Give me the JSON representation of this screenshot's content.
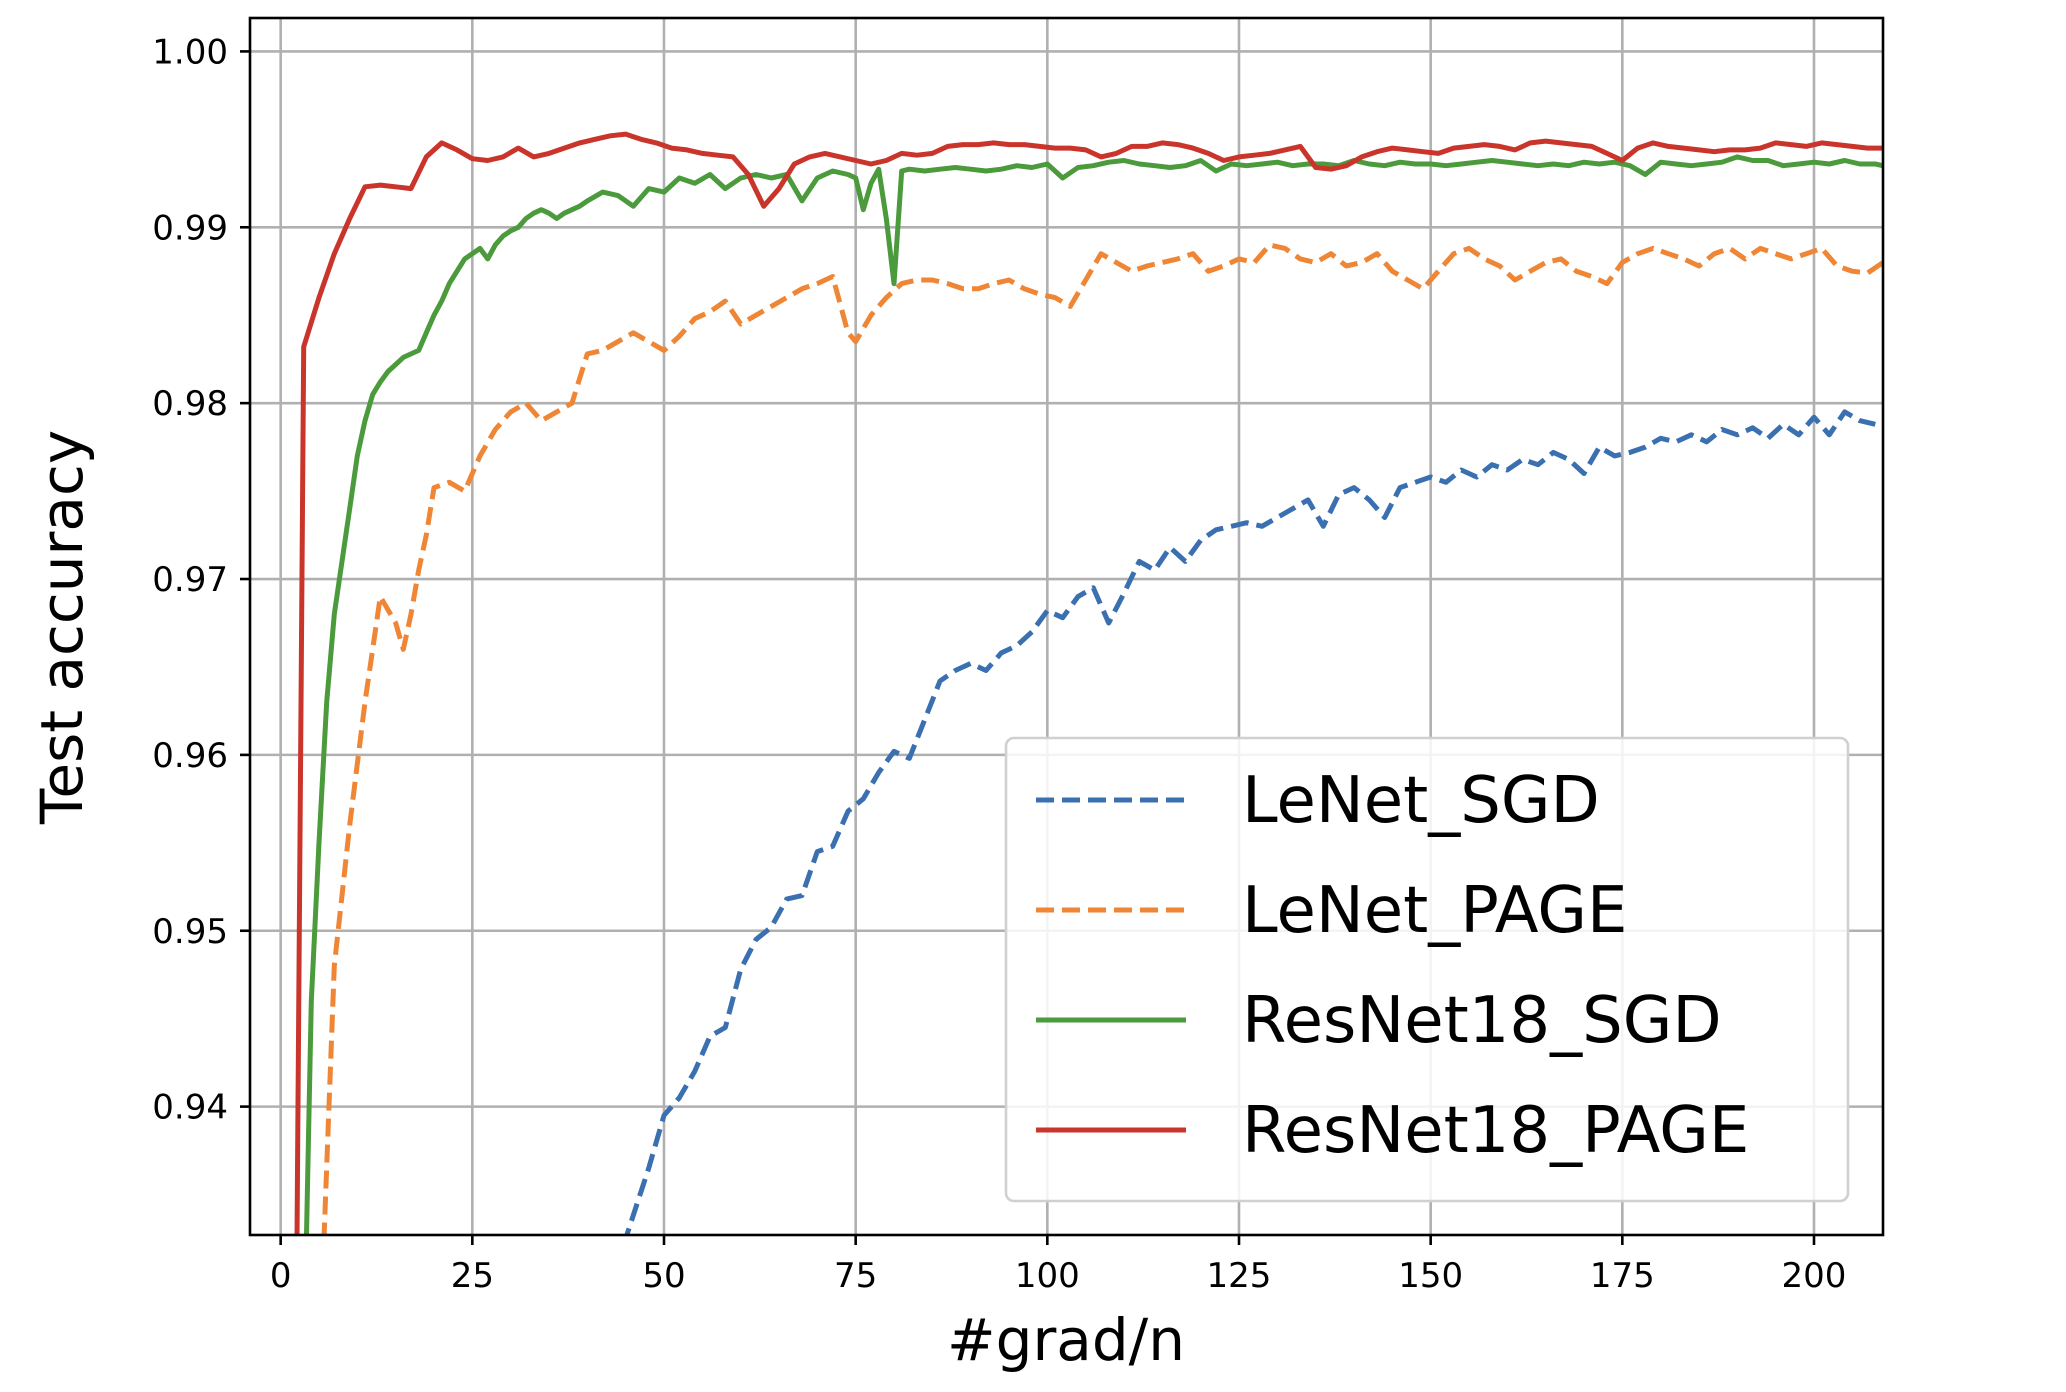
{
  "chart_data": {
    "type": "line",
    "title": "",
    "xlabel": "#grad/n",
    "ylabel": "Test accuracy",
    "xlim": [
      -4,
      209
    ],
    "ylim": [
      0.9327,
      1.0019
    ],
    "xticks": [
      0,
      25,
      50,
      75,
      100,
      125,
      150,
      175,
      200
    ],
    "xtick_labels": [
      "0",
      "25",
      "50",
      "75",
      "100",
      "125",
      "150",
      "175",
      "200"
    ],
    "yticks": [
      0.94,
      0.95,
      0.96,
      0.97,
      0.98,
      0.99,
      1.0
    ],
    "ytick_labels": [
      "0.94",
      "0.95",
      "0.96",
      "0.97",
      "0.98",
      "0.99",
      "1.00"
    ],
    "grid": true,
    "legend": "lower-right",
    "series": [
      {
        "name": "LeNet_SGD",
        "color": "#3a6fb0",
        "style": "dashed",
        "x": [
          40,
          45,
          48,
          50,
          52,
          54,
          56,
          58,
          60,
          62,
          64,
          66,
          68,
          70,
          72,
          74,
          76,
          78,
          80,
          82,
          84,
          86,
          88,
          90,
          92,
          94,
          96,
          98,
          100,
          102,
          104,
          106,
          108,
          110,
          112,
          114,
          116,
          118,
          120,
          122,
          124,
          126,
          128,
          130,
          132,
          134,
          136,
          138,
          140,
          142,
          144,
          146,
          148,
          150,
          152,
          154,
          156,
          158,
          160,
          162,
          164,
          166,
          168,
          170,
          172,
          174,
          176,
          178,
          180,
          182,
          184,
          186,
          188,
          190,
          192,
          194,
          196,
          198,
          200,
          202,
          204,
          206,
          208
        ],
        "y": [
          0.925,
          0.9325,
          0.9365,
          0.9395,
          0.9405,
          0.942,
          0.944,
          0.9445,
          0.9478,
          0.9495,
          0.9502,
          0.9518,
          0.952,
          0.9545,
          0.9548,
          0.9568,
          0.9575,
          0.959,
          0.9602,
          0.9598,
          0.962,
          0.9642,
          0.9648,
          0.9652,
          0.9648,
          0.9658,
          0.9662,
          0.967,
          0.9682,
          0.9678,
          0.969,
          0.9695,
          0.9675,
          0.9692,
          0.971,
          0.9705,
          0.9718,
          0.971,
          0.9722,
          0.9728,
          0.973,
          0.9732,
          0.973,
          0.9735,
          0.974,
          0.9745,
          0.973,
          0.9748,
          0.9752,
          0.9745,
          0.9735,
          0.9752,
          0.9755,
          0.9758,
          0.9755,
          0.9762,
          0.9758,
          0.9765,
          0.9762,
          0.9768,
          0.9765,
          0.9772,
          0.9768,
          0.976,
          0.9775,
          0.977,
          0.9772,
          0.9775,
          0.978,
          0.9778,
          0.9782,
          0.9778,
          0.9785,
          0.9782,
          0.9786,
          0.978,
          0.9788,
          0.9782,
          0.9792,
          0.9782,
          0.9795,
          0.979,
          0.9788
        ]
      },
      {
        "name": "LeNet_PAGE",
        "color": "#ef8636",
        "style": "dashed",
        "x": [
          5,
          7,
          9,
          11,
          13,
          15,
          16,
          17,
          18,
          19,
          20,
          22,
          24,
          26,
          28,
          30,
          32,
          34,
          36,
          38,
          40,
          42,
          44,
          46,
          48,
          50,
          52,
          54,
          56,
          58,
          60,
          62,
          64,
          66,
          68,
          70,
          72,
          74,
          75,
          77,
          79,
          81,
          83,
          85,
          87,
          89,
          91,
          93,
          95,
          97,
          99,
          101,
          103,
          105,
          107,
          109,
          111,
          113,
          115,
          117,
          119,
          121,
          123,
          125,
          127,
          129,
          131,
          133,
          135,
          137,
          139,
          141,
          143,
          145,
          147,
          149,
          151,
          153,
          155,
          157,
          159,
          161,
          163,
          165,
          167,
          169,
          171,
          173,
          175,
          177,
          179,
          181,
          183,
          185,
          187,
          189,
          191,
          193,
          195,
          197,
          199,
          201,
          203,
          205,
          207,
          209
        ],
        "y": [
          0.925,
          0.948,
          0.956,
          0.963,
          0.969,
          0.9675,
          0.966,
          0.968,
          0.9705,
          0.9725,
          0.9752,
          0.9755,
          0.975,
          0.977,
          0.9785,
          0.9795,
          0.98,
          0.979,
          0.9795,
          0.98,
          0.9828,
          0.983,
          0.9835,
          0.984,
          0.9835,
          0.983,
          0.9838,
          0.9848,
          0.9852,
          0.9858,
          0.9845,
          0.985,
          0.9855,
          0.986,
          0.9865,
          0.9868,
          0.9872,
          0.984,
          0.9835,
          0.985,
          0.986,
          0.9868,
          0.987,
          0.987,
          0.9868,
          0.9865,
          0.9865,
          0.9868,
          0.987,
          0.9865,
          0.9862,
          0.986,
          0.9855,
          0.987,
          0.9885,
          0.988,
          0.9875,
          0.9878,
          0.988,
          0.9882,
          0.9885,
          0.9875,
          0.9878,
          0.9882,
          0.988,
          0.989,
          0.9888,
          0.9882,
          0.988,
          0.9885,
          0.9878,
          0.988,
          0.9885,
          0.9875,
          0.987,
          0.9865,
          0.9875,
          0.9885,
          0.9888,
          0.9882,
          0.9878,
          0.987,
          0.9875,
          0.988,
          0.9882,
          0.9875,
          0.9872,
          0.9868,
          0.988,
          0.9885,
          0.9888,
          0.9885,
          0.9882,
          0.9878,
          0.9885,
          0.9888,
          0.9882,
          0.9888,
          0.9885,
          0.9882,
          0.9885,
          0.9888,
          0.9878,
          0.9875,
          0.9874,
          0.988
        ]
      },
      {
        "name": "ResNet18_SGD",
        "color": "#4b9a3c",
        "style": "solid",
        "x": [
          3,
          4,
          5,
          6,
          7,
          8,
          9,
          10,
          11,
          12,
          13,
          14,
          15,
          16,
          17,
          18,
          19,
          20,
          21,
          22,
          23,
          24,
          25,
          26,
          27,
          28,
          29,
          30,
          31,
          32,
          33,
          34,
          35,
          36,
          37,
          38,
          39,
          40,
          42,
          44,
          46,
          48,
          50,
          52,
          54,
          56,
          58,
          60,
          62,
          64,
          66,
          68,
          70,
          72,
          74,
          75,
          76,
          77,
          78,
          79,
          80,
          81,
          82,
          84,
          86,
          88,
          90,
          92,
          94,
          96,
          98,
          100,
          102,
          104,
          106,
          108,
          110,
          112,
          114,
          116,
          118,
          120,
          122,
          124,
          126,
          128,
          130,
          132,
          134,
          136,
          138,
          140,
          142,
          144,
          146,
          148,
          150,
          152,
          154,
          156,
          158,
          160,
          162,
          164,
          166,
          168,
          170,
          172,
          174,
          176,
          178,
          180,
          182,
          184,
          186,
          188,
          190,
          192,
          194,
          196,
          198,
          200,
          202,
          204,
          206,
          208,
          209
        ],
        "y": [
          0.925,
          0.946,
          0.955,
          0.963,
          0.968,
          0.971,
          0.974,
          0.977,
          0.979,
          0.9805,
          0.9812,
          0.9818,
          0.9822,
          0.9826,
          0.9828,
          0.983,
          0.984,
          0.985,
          0.9858,
          0.9868,
          0.9875,
          0.9882,
          0.9885,
          0.9888,
          0.9882,
          0.989,
          0.9895,
          0.9898,
          0.99,
          0.9905,
          0.9908,
          0.991,
          0.9908,
          0.9905,
          0.9908,
          0.991,
          0.9912,
          0.9915,
          0.992,
          0.9918,
          0.9912,
          0.9922,
          0.992,
          0.9928,
          0.9925,
          0.993,
          0.9922,
          0.9928,
          0.993,
          0.9928,
          0.993,
          0.9915,
          0.9928,
          0.9932,
          0.993,
          0.9928,
          0.991,
          0.9925,
          0.9933,
          0.9905,
          0.9868,
          0.9932,
          0.9933,
          0.9932,
          0.9933,
          0.9934,
          0.9933,
          0.9932,
          0.9933,
          0.9935,
          0.9934,
          0.9936,
          0.9928,
          0.9934,
          0.9935,
          0.9937,
          0.9938,
          0.9936,
          0.9935,
          0.9934,
          0.9935,
          0.9938,
          0.9932,
          0.9936,
          0.9935,
          0.9936,
          0.9937,
          0.9935,
          0.9936,
          0.9936,
          0.9935,
          0.9938,
          0.9936,
          0.9935,
          0.9937,
          0.9936,
          0.9936,
          0.9935,
          0.9936,
          0.9937,
          0.9938,
          0.9937,
          0.9936,
          0.9935,
          0.9936,
          0.9935,
          0.9937,
          0.9936,
          0.9937,
          0.9935,
          0.993,
          0.9937,
          0.9936,
          0.9935,
          0.9936,
          0.9937,
          0.994,
          0.9938,
          0.9938,
          0.9935,
          0.9936,
          0.9937,
          0.9936,
          0.9938,
          0.9936,
          0.9936,
          0.9935
        ]
      },
      {
        "name": "ResNet18_PAGE",
        "color": "#c9352b",
        "style": "solid",
        "x": [
          2,
          3,
          5,
          7,
          9,
          11,
          13,
          15,
          17,
          19,
          21,
          23,
          25,
          27,
          29,
          31,
          33,
          35,
          37,
          39,
          41,
          43,
          45,
          47,
          49,
          51,
          53,
          55,
          57,
          59,
          61,
          63,
          65,
          67,
          69,
          71,
          73,
          75,
          77,
          79,
          81,
          83,
          85,
          87,
          89,
          91,
          93,
          95,
          97,
          99,
          101,
          103,
          105,
          107,
          109,
          111,
          113,
          115,
          117,
          119,
          121,
          123,
          125,
          127,
          129,
          131,
          133,
          135,
          137,
          139,
          141,
          143,
          145,
          147,
          149,
          151,
          153,
          155,
          157,
          159,
          161,
          163,
          165,
          167,
          169,
          171,
          173,
          175,
          177,
          179,
          181,
          183,
          185,
          187,
          189,
          191,
          193,
          195,
          197,
          199,
          201,
          203,
          205,
          207,
          209
        ],
        "y": [
          0.925,
          0.9832,
          0.986,
          0.9885,
          0.9905,
          0.9923,
          0.9924,
          0.9923,
          0.9922,
          0.994,
          0.9948,
          0.9944,
          0.9939,
          0.9938,
          0.994,
          0.9945,
          0.994,
          0.9942,
          0.9945,
          0.9948,
          0.995,
          0.9952,
          0.9953,
          0.995,
          0.9948,
          0.9945,
          0.9944,
          0.9942,
          0.9941,
          0.994,
          0.993,
          0.9912,
          0.9922,
          0.9936,
          0.994,
          0.9942,
          0.994,
          0.9938,
          0.9936,
          0.9938,
          0.9942,
          0.9941,
          0.9942,
          0.9946,
          0.9947,
          0.9947,
          0.9948,
          0.9947,
          0.9947,
          0.9946,
          0.9945,
          0.9945,
          0.9944,
          0.994,
          0.9942,
          0.9946,
          0.9946,
          0.9948,
          0.9947,
          0.9945,
          0.9942,
          0.9938,
          0.994,
          0.9941,
          0.9942,
          0.9944,
          0.9946,
          0.9934,
          0.9933,
          0.9935,
          0.994,
          0.9943,
          0.9945,
          0.9944,
          0.9943,
          0.9942,
          0.9945,
          0.9946,
          0.9947,
          0.9946,
          0.9944,
          0.9948,
          0.9949,
          0.9948,
          0.9947,
          0.9946,
          0.9942,
          0.9938,
          0.9945,
          0.9948,
          0.9946,
          0.9945,
          0.9944,
          0.9943,
          0.9944,
          0.9944,
          0.9945,
          0.9948,
          0.9947,
          0.9946,
          0.9948,
          0.9947,
          0.9946,
          0.9945,
          0.9945
        ]
      }
    ]
  }
}
